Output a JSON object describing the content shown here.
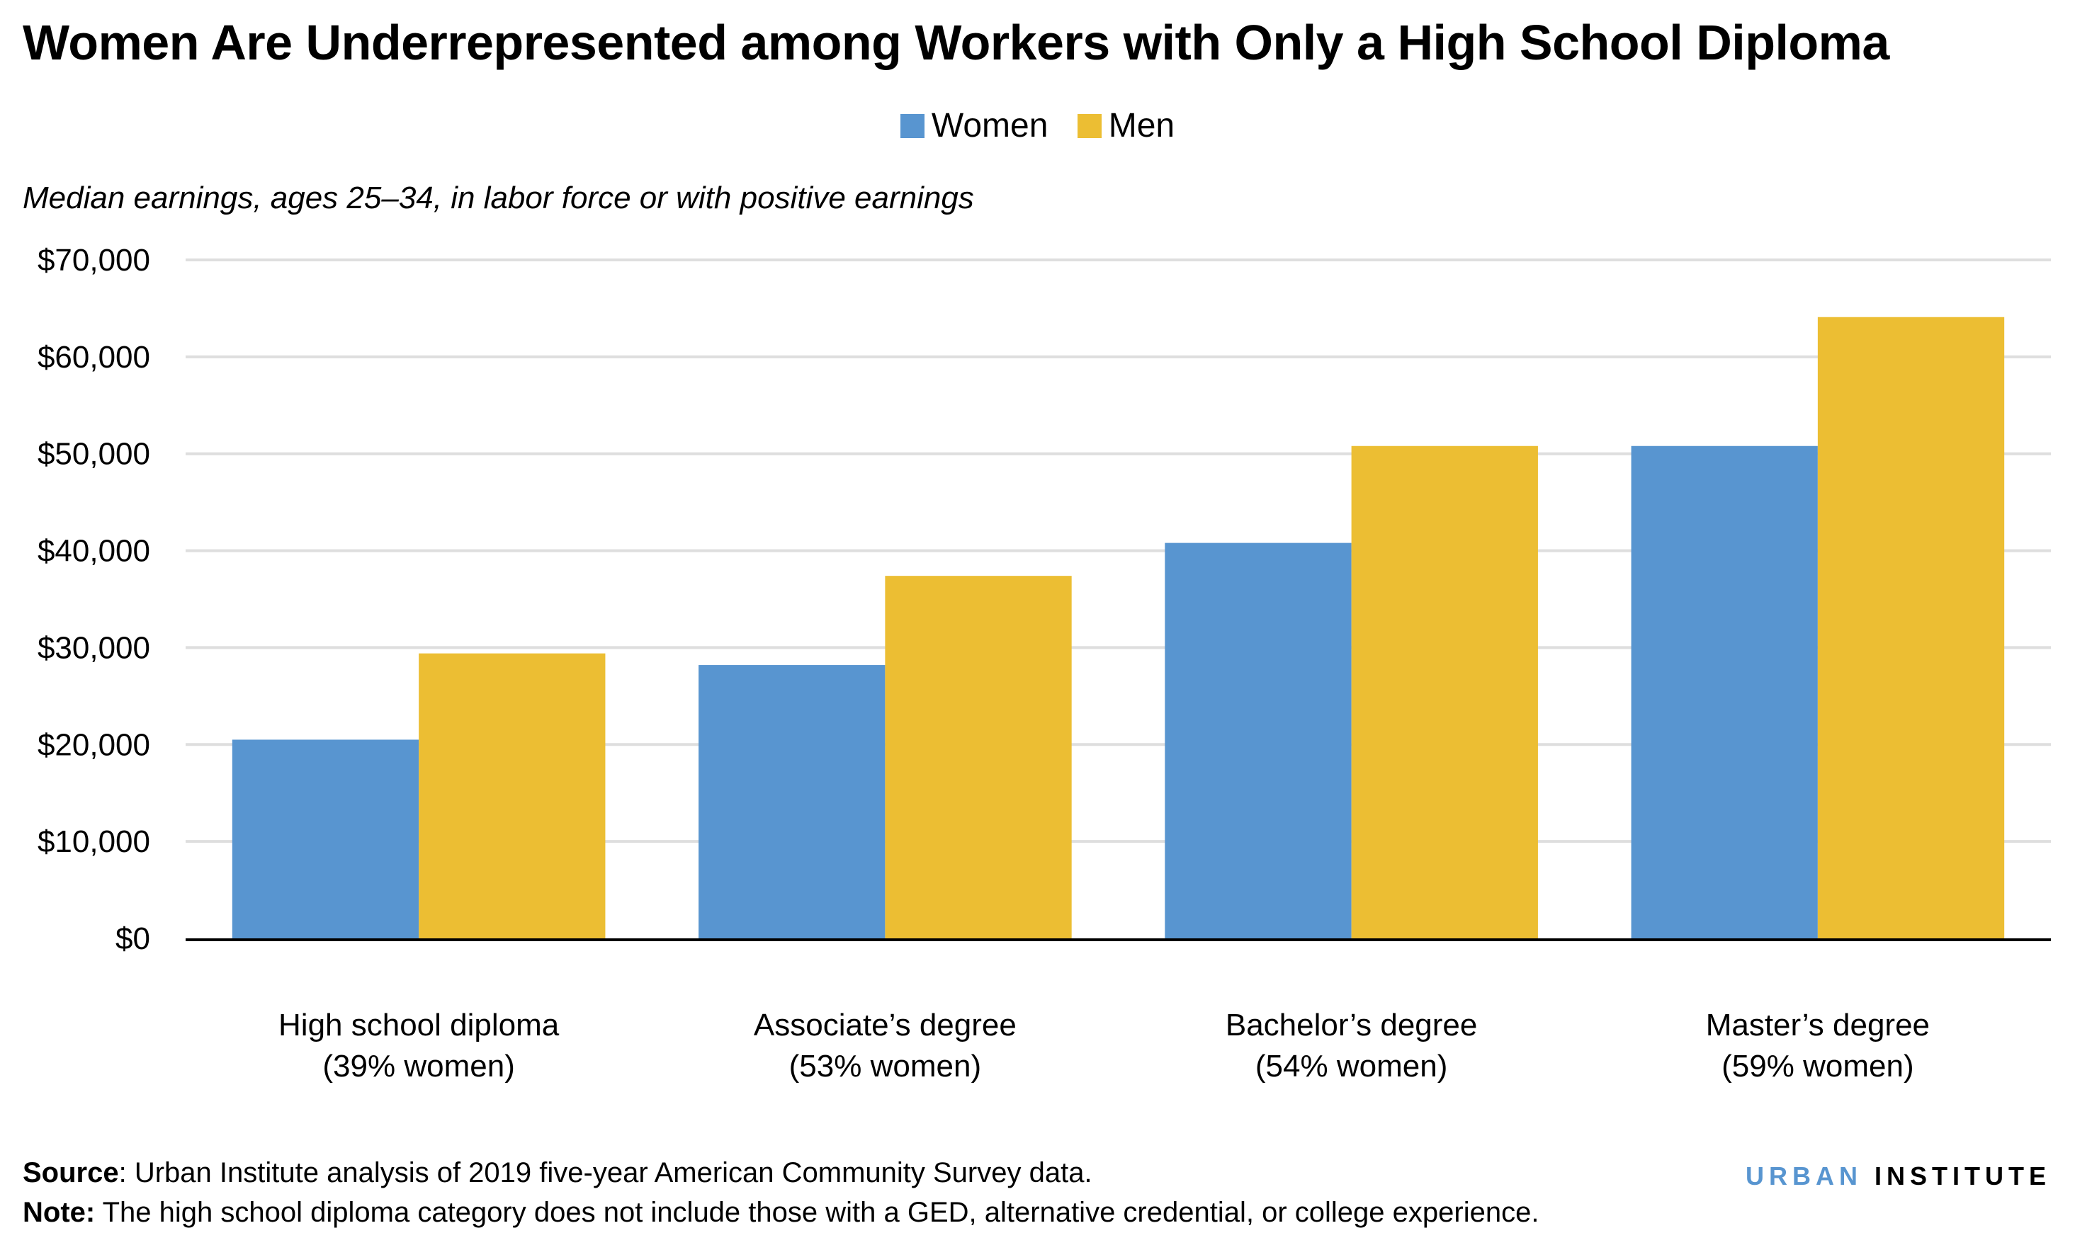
{
  "title": "Women Are Underrepresented among Workers with Only a High School Diploma",
  "subtitle": "Median earnings, ages 25–34, in labor force or with positive earnings",
  "legend": [
    "Women",
    "Men"
  ],
  "colors": {
    "Women": "#5895d0",
    "Men": "#ecbe33",
    "grid": "#dedede"
  },
  "footer": {
    "source_label": "Source",
    "source_text": ": Urban Institute analysis of 2019 five-year American Community Survey data.",
    "note_label": "Note:",
    "note_text": " The high school diploma category does not include those with a GED, alternative credential, or college experience."
  },
  "logo": {
    "part1": "URBAN",
    "part2": "INSTITUTE"
  },
  "chart_data": {
    "type": "bar",
    "title": "Women Are Underrepresented among Workers with Only a High School Diploma",
    "subtitle": "Median earnings, ages 25–34, in labor force or with positive earnings",
    "categories": [
      [
        "High school diploma",
        "(39% women)"
      ],
      [
        "Associate’s degree",
        "(53% women)"
      ],
      [
        "Bachelor’s degree",
        "(54% women)"
      ],
      [
        "Master’s degree",
        "(59% women)"
      ]
    ],
    "series": [
      {
        "name": "Women",
        "values": [
          20500,
          28200,
          40800,
          50800
        ]
      },
      {
        "name": "Men",
        "values": [
          29400,
          37400,
          50800,
          64100
        ]
      }
    ],
    "ylim": [
      0,
      70000
    ],
    "yticks": [
      "$0",
      "$10,000",
      "$20,000",
      "$30,000",
      "$40,000",
      "$50,000",
      "$60,000",
      "$70,000"
    ],
    "grid": true,
    "legend_position": "top-center"
  }
}
